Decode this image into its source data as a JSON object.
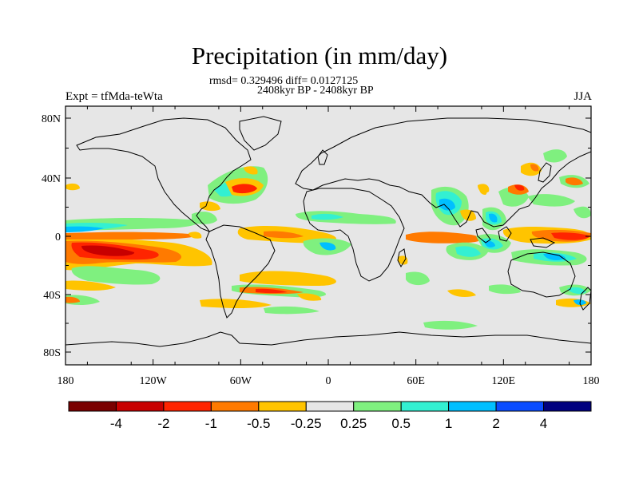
{
  "header": {
    "title": "Precipitation (in mm/day)",
    "stats": "rmsd= 0.329496 diff= 0.0127125",
    "period": "2408kyr BP - 2408kyr BP",
    "experiment": "Expt = tfMda-teWta",
    "season": "JJA"
  },
  "map": {
    "background_color": "#e6e6e6",
    "lat_labels": [
      "80N",
      "40N",
      "0",
      "40S",
      "80S"
    ],
    "lon_labels": [
      "180",
      "120W",
      "60W",
      "0",
      "60E",
      "120E",
      "180"
    ]
  },
  "colorbar": {
    "colors": [
      "#7a0000",
      "#c80000",
      "#ff2400",
      "#ff7a00",
      "#ffc400",
      "#e6e6e6",
      "#7ff07f",
      "#33f0d2",
      "#00bfff",
      "#0a4cff",
      "#00007f"
    ],
    "labels": [
      "-4",
      "-2",
      "-1",
      "-0.5",
      "-0.25",
      "0.25",
      "0.5",
      "1",
      "2",
      "4"
    ]
  }
}
